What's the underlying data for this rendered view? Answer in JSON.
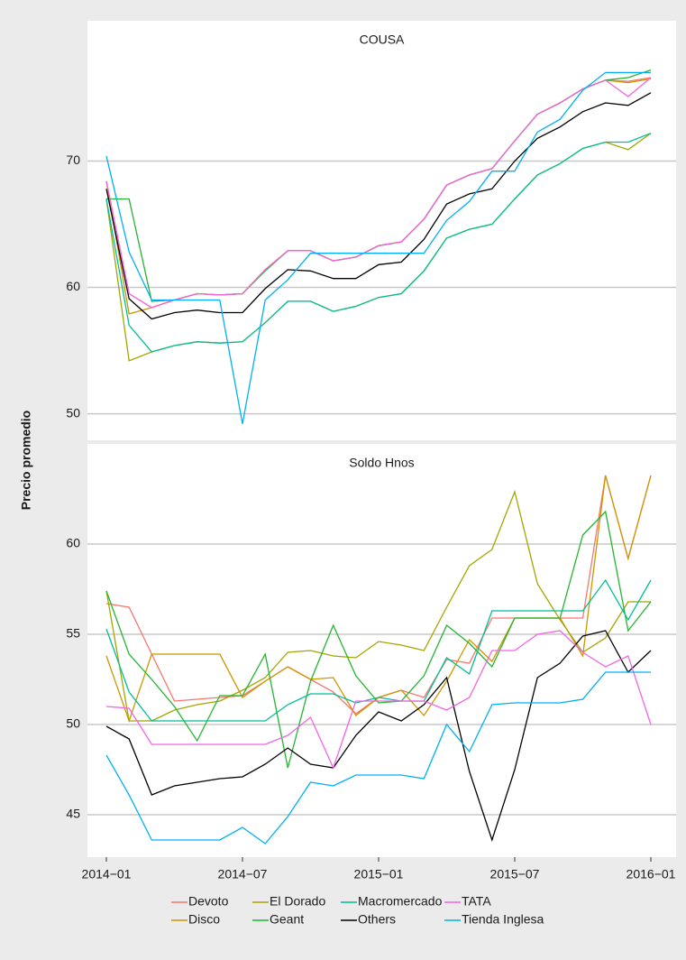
{
  "chart_data": [
    {
      "type": "line",
      "title": "COUSA",
      "ylim": [
        47.9,
        81.1
      ],
      "yticks": [
        50,
        60,
        70
      ],
      "grid": true,
      "series": [
        {
          "name": "Devoto",
          "color": "#f8766d",
          "values": [
            68.4,
            59.5,
            58.4,
            59.0,
            59.5,
            59.4,
            59.5,
            61.4,
            62.9,
            62.9,
            62.1,
            62.4,
            63.3,
            63.6,
            65.4,
            68.1,
            68.9,
            69.4,
            71.6,
            73.7,
            74.6,
            75.7,
            76.4,
            76.3,
            76.6
          ]
        },
        {
          "name": "Disco",
          "color": "#cd9600",
          "values": [
            68.4,
            57.9,
            58.4,
            59.0,
            59.5,
            59.4,
            59.5,
            61.4,
            62.9,
            62.9,
            62.1,
            62.4,
            63.3,
            63.6,
            65.4,
            68.1,
            68.9,
            69.4,
            71.6,
            73.7,
            74.6,
            75.7,
            76.4,
            76.2,
            76.5
          ]
        },
        {
          "name": "El Dorado",
          "color": "#a3a500",
          "values": [
            67.0,
            54.2,
            54.9,
            55.4,
            55.7,
            55.6,
            55.7,
            57.2,
            58.9,
            58.9,
            58.1,
            58.5,
            59.2,
            59.5,
            61.3,
            63.9,
            64.6,
            65.0,
            67.0,
            68.9,
            69.8,
            71.0,
            71.5,
            70.9,
            72.2
          ]
        },
        {
          "name": "Geant",
          "color": "#22b531",
          "values": [
            67.0,
            67.0,
            58.9,
            59.0,
            59.5,
            59.4,
            59.5,
            61.3,
            62.9,
            62.9,
            62.1,
            62.4,
            63.3,
            63.6,
            65.4,
            68.1,
            68.9,
            69.4,
            71.6,
            73.7,
            74.6,
            75.7,
            76.4,
            76.6,
            77.2
          ]
        },
        {
          "name": "Macromercado",
          "color": "#00bf96",
          "values": [
            67.0,
            57.0,
            54.9,
            55.4,
            55.7,
            55.6,
            55.7,
            57.2,
            58.9,
            58.9,
            58.1,
            58.5,
            59.2,
            59.5,
            61.3,
            63.9,
            64.6,
            65.0,
            67.0,
            68.9,
            69.8,
            71.0,
            71.5,
            71.5,
            72.2
          ]
        },
        {
          "name": "Others",
          "color": "#000000",
          "values": [
            67.8,
            59.1,
            57.5,
            58.0,
            58.2,
            58.0,
            58.0,
            59.9,
            61.4,
            61.3,
            60.7,
            60.7,
            61.8,
            62.0,
            63.8,
            66.6,
            67.4,
            67.8,
            70.0,
            71.8,
            72.7,
            73.9,
            74.6,
            74.4,
            75.4
          ]
        },
        {
          "name": "TATA",
          "color": "#f564e3",
          "values": [
            68.4,
            59.5,
            58.4,
            59.0,
            59.5,
            59.4,
            59.5,
            61.4,
            62.9,
            62.9,
            62.1,
            62.4,
            63.3,
            63.6,
            65.4,
            68.1,
            68.9,
            69.4,
            71.6,
            73.7,
            74.6,
            75.7,
            76.4,
            75.1,
            76.6
          ]
        },
        {
          "name": "Tienda Inglesa",
          "color": "#00b0f6",
          "values": [
            70.4,
            62.8,
            59.0,
            59.0,
            59.0,
            59.0,
            49.2,
            59.0,
            60.6,
            62.7,
            62.7,
            62.7,
            62.7,
            62.7,
            62.7,
            65.3,
            66.8,
            69.2,
            69.2,
            72.3,
            73.3,
            75.6,
            77.0,
            77.0,
            77.0
          ]
        }
      ]
    },
    {
      "type": "line",
      "title": "Soldo Hnos",
      "ylim": [
        42.65,
        65.55
      ],
      "yticks": [
        45,
        50,
        55,
        60
      ],
      "grid": true,
      "series": [
        {
          "values": [
            56.7,
            56.5,
            53.9,
            51.3,
            51.4,
            51.5,
            51.6,
            52.4,
            53.2,
            52.5,
            51.8,
            50.6,
            51.5,
            51.9,
            51.5,
            53.6,
            53.4,
            55.9,
            55.9,
            55.9,
            55.9,
            55.9,
            63.8,
            59.2,
            63.8
          ]
        },
        {
          "values": [
            53.8,
            50.2,
            53.9,
            53.9,
            53.9,
            53.9,
            51.5,
            52.4,
            53.2,
            52.5,
            52.6,
            50.5,
            51.5,
            51.9,
            50.5,
            52.4,
            54.7,
            53.5,
            55.9,
            55.9,
            55.9,
            53.8,
            63.8,
            59.2,
            63.8
          ]
        },
        {
          "values": [
            57.4,
            50.2,
            50.2,
            50.8,
            51.1,
            51.3,
            51.9,
            52.6,
            54.0,
            54.1,
            53.8,
            53.7,
            54.6,
            54.4,
            54.1,
            56.5,
            58.8,
            59.7,
            62.9,
            57.8,
            55.8,
            54.0,
            54.8,
            56.8,
            56.8
          ]
        },
        {
          "values": [
            57.4,
            53.9,
            52.5,
            51.0,
            49.1,
            51.6,
            51.6,
            53.9,
            47.6,
            52.4,
            55.5,
            52.7,
            51.2,
            51.3,
            52.7,
            55.5,
            54.5,
            53.2,
            55.9,
            55.9,
            55.9,
            60.5,
            61.8,
            55.2,
            56.8
          ]
        },
        {
          "values": [
            55.3,
            51.8,
            50.2,
            50.2,
            50.2,
            50.2,
            50.2,
            50.2,
            51.1,
            51.7,
            51.7,
            51.2,
            51.5,
            51.3,
            51.3,
            53.7,
            52.8,
            56.3,
            56.3,
            56.3,
            56.3,
            56.3,
            58.0,
            55.8,
            58.0
          ]
        },
        {
          "values": [
            49.9,
            49.2,
            46.1,
            46.6,
            46.8,
            47.0,
            47.1,
            47.8,
            48.7,
            47.8,
            47.6,
            49.4,
            50.7,
            50.2,
            51.1,
            52.6,
            47.4,
            43.6,
            47.5,
            52.6,
            53.4,
            54.9,
            55.2,
            52.9,
            54.1
          ]
        },
        {
          "values": [
            51.0,
            50.9,
            48.9,
            48.9,
            48.9,
            48.9,
            48.9,
            48.9,
            49.4,
            50.4,
            47.6,
            51.3,
            51.3,
            51.3,
            51.3,
            50.8,
            51.5,
            54.1,
            54.1,
            55.0,
            55.2,
            54.0,
            53.2,
            53.8,
            50.0
          ]
        },
        {
          "values": [
            48.3,
            46.1,
            43.6,
            43.6,
            43.6,
            43.6,
            44.3,
            43.4,
            44.9,
            46.8,
            46.6,
            47.2,
            47.2,
            47.2,
            47.0,
            50.0,
            48.5,
            51.1,
            51.2,
            51.2,
            51.2,
            51.4,
            52.9,
            52.9,
            52.9
          ]
        }
      ]
    }
  ],
  "x": [
    "2014-01",
    "2014-02",
    "2014-03",
    "2014-04",
    "2014-05",
    "2014-06",
    "2014-07",
    "2014-08",
    "2014-09",
    "2014-10",
    "2014-11",
    "2014-12",
    "2015-01",
    "2015-02",
    "2015-03",
    "2015-04",
    "2015-05",
    "2015-06",
    "2015-07",
    "2015-08",
    "2015-09",
    "2015-10",
    "2015-11",
    "2015-12",
    "2016-01"
  ],
  "xticks": [
    {
      "value": "2014-01",
      "label": "2014−01"
    },
    {
      "value": "2014-07",
      "label": "2014−07"
    },
    {
      "value": "2015-01",
      "label": "2015−01"
    },
    {
      "value": "2015-07",
      "label": "2015−07"
    },
    {
      "value": "2016-01",
      "label": "2016−01"
    }
  ],
  "ylabel": "Precio promedio",
  "legend": "bottom"
}
